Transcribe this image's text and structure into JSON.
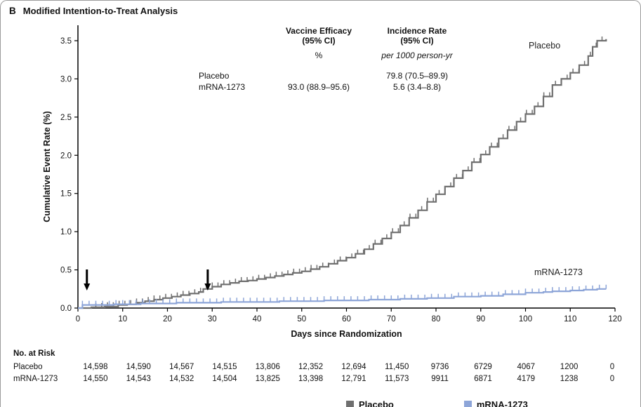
{
  "panel": {
    "label": "B",
    "title": "Modified Intention-to-Treat Analysis"
  },
  "chart_data": {
    "type": "line",
    "subtype": "kaplan-meier-step",
    "title": "Modified Intention-to-Treat Analysis",
    "xlabel": "Days since Randomization",
    "ylabel": "Cumulative Event Rate (%)",
    "xlim": [
      0,
      120
    ],
    "ylim": [
      0,
      3.5
    ],
    "grid": false,
    "xticks": [
      0,
      10,
      20,
      30,
      40,
      50,
      60,
      70,
      80,
      90,
      100,
      110,
      120
    ],
    "yticks": [
      0,
      0.5,
      1,
      1.5,
      2,
      2.5,
      3,
      3.5
    ],
    "ytick_labels": [
      "0.0",
      "0.5",
      "1.0",
      "1.5",
      "2.0",
      "2.5",
      "3.0",
      "3.5"
    ],
    "arrows": [
      {
        "x": 2
      },
      {
        "x": 29
      }
    ],
    "series": [
      {
        "name": "Placebo",
        "color": "#6f6f6f",
        "tick_start": 4,
        "tick_step": 1.3,
        "points": [
          [
            0,
            0
          ],
          [
            3,
            0.01
          ],
          [
            6,
            0.02
          ],
          [
            9,
            0.04
          ],
          [
            11,
            0.05
          ],
          [
            13,
            0.07
          ],
          [
            15,
            0.09
          ],
          [
            17,
            0.11
          ],
          [
            19,
            0.13
          ],
          [
            21,
            0.15
          ],
          [
            23,
            0.17
          ],
          [
            25,
            0.19
          ],
          [
            27,
            0.21
          ],
          [
            28,
            0.25
          ],
          [
            30,
            0.28
          ],
          [
            32,
            0.31
          ],
          [
            34,
            0.33
          ],
          [
            36,
            0.35
          ],
          [
            38,
            0.36
          ],
          [
            40,
            0.38
          ],
          [
            42,
            0.4
          ],
          [
            44,
            0.42
          ],
          [
            46,
            0.44
          ],
          [
            48,
            0.46
          ],
          [
            50,
            0.48
          ],
          [
            52,
            0.51
          ],
          [
            54,
            0.54
          ],
          [
            56,
            0.58
          ],
          [
            58,
            0.62
          ],
          [
            60,
            0.66
          ],
          [
            62,
            0.71
          ],
          [
            64,
            0.77
          ],
          [
            66,
            0.84
          ],
          [
            68,
            0.91
          ],
          [
            70,
            0.99
          ],
          [
            72,
            1.08
          ],
          [
            74,
            1.18
          ],
          [
            76,
            1.28
          ],
          [
            78,
            1.39
          ],
          [
            80,
            1.49
          ],
          [
            82,
            1.59
          ],
          [
            84,
            1.7
          ],
          [
            86,
            1.8
          ],
          [
            88,
            1.91
          ],
          [
            90,
            2.01
          ],
          [
            92,
            2.11
          ],
          [
            94,
            2.22
          ],
          [
            96,
            2.33
          ],
          [
            98,
            2.44
          ],
          [
            100,
            2.54
          ],
          [
            102,
            2.64
          ],
          [
            104,
            2.77
          ],
          [
            106,
            2.92
          ],
          [
            108,
            3.0
          ],
          [
            110,
            3.08
          ],
          [
            112,
            3.18
          ],
          [
            114,
            3.3
          ],
          [
            115,
            3.42
          ],
          [
            116,
            3.5
          ],
          [
            118,
            3.52
          ]
        ]
      },
      {
        "name": "mRNA-1273",
        "color": "#8da5d8",
        "tick_start": 1,
        "tick_step": 1.5,
        "points": [
          [
            0,
            0
          ],
          [
            1,
            0.04
          ],
          [
            8,
            0.05
          ],
          [
            14,
            0.06
          ],
          [
            22,
            0.07
          ],
          [
            32,
            0.08
          ],
          [
            45,
            0.09
          ],
          [
            55,
            0.1
          ],
          [
            65,
            0.11
          ],
          [
            72,
            0.12
          ],
          [
            78,
            0.13
          ],
          [
            84,
            0.15
          ],
          [
            90,
            0.16
          ],
          [
            95,
            0.18
          ],
          [
            100,
            0.2
          ],
          [
            104,
            0.21
          ],
          [
            106,
            0.22
          ],
          [
            110,
            0.23
          ],
          [
            113,
            0.24
          ],
          [
            116,
            0.25
          ],
          [
            118,
            0.25
          ]
        ]
      }
    ]
  },
  "curve_labels": {
    "placebo": "Placebo",
    "mrna": "mRNA-1273"
  },
  "efficacy_table": {
    "efficacy_header": "Vaccine Efficacy\n(95% CI)",
    "efficacy_unit": "%",
    "incidence_header": "Incidence Rate\n(95% CI)",
    "incidence_unit": "per 1000 person-yr",
    "rows": [
      {
        "name": "Placebo",
        "efficacy": "",
        "incidence": "79.8 (70.5–89.9)"
      },
      {
        "name": "mRNA-1273",
        "efficacy": "93.0 (88.9–95.6)",
        "incidence": "5.6 (3.4–8.8)"
      }
    ]
  },
  "risk_table": {
    "title": "No. at Risk",
    "rows": [
      {
        "name": "Placebo",
        "values": [
          "14,598",
          "14,590",
          "14,567",
          "14,515",
          "13,806",
          "12,352",
          "12,694",
          "11,450",
          "9736",
          "6729",
          "4067",
          "1200",
          "0"
        ]
      },
      {
        "name": "mRNA-1273",
        "values": [
          "14,550",
          "14,543",
          "14,532",
          "14,504",
          "13,825",
          "13,398",
          "12,791",
          "11,573",
          "9911",
          "6871",
          "4179",
          "1238",
          "0"
        ]
      }
    ]
  },
  "bottom_legend": {
    "items": [
      {
        "label": "Placebo",
        "color": "#6f6f6f"
      },
      {
        "label": "mRNA-1273",
        "color": "#8da5d8"
      }
    ]
  }
}
